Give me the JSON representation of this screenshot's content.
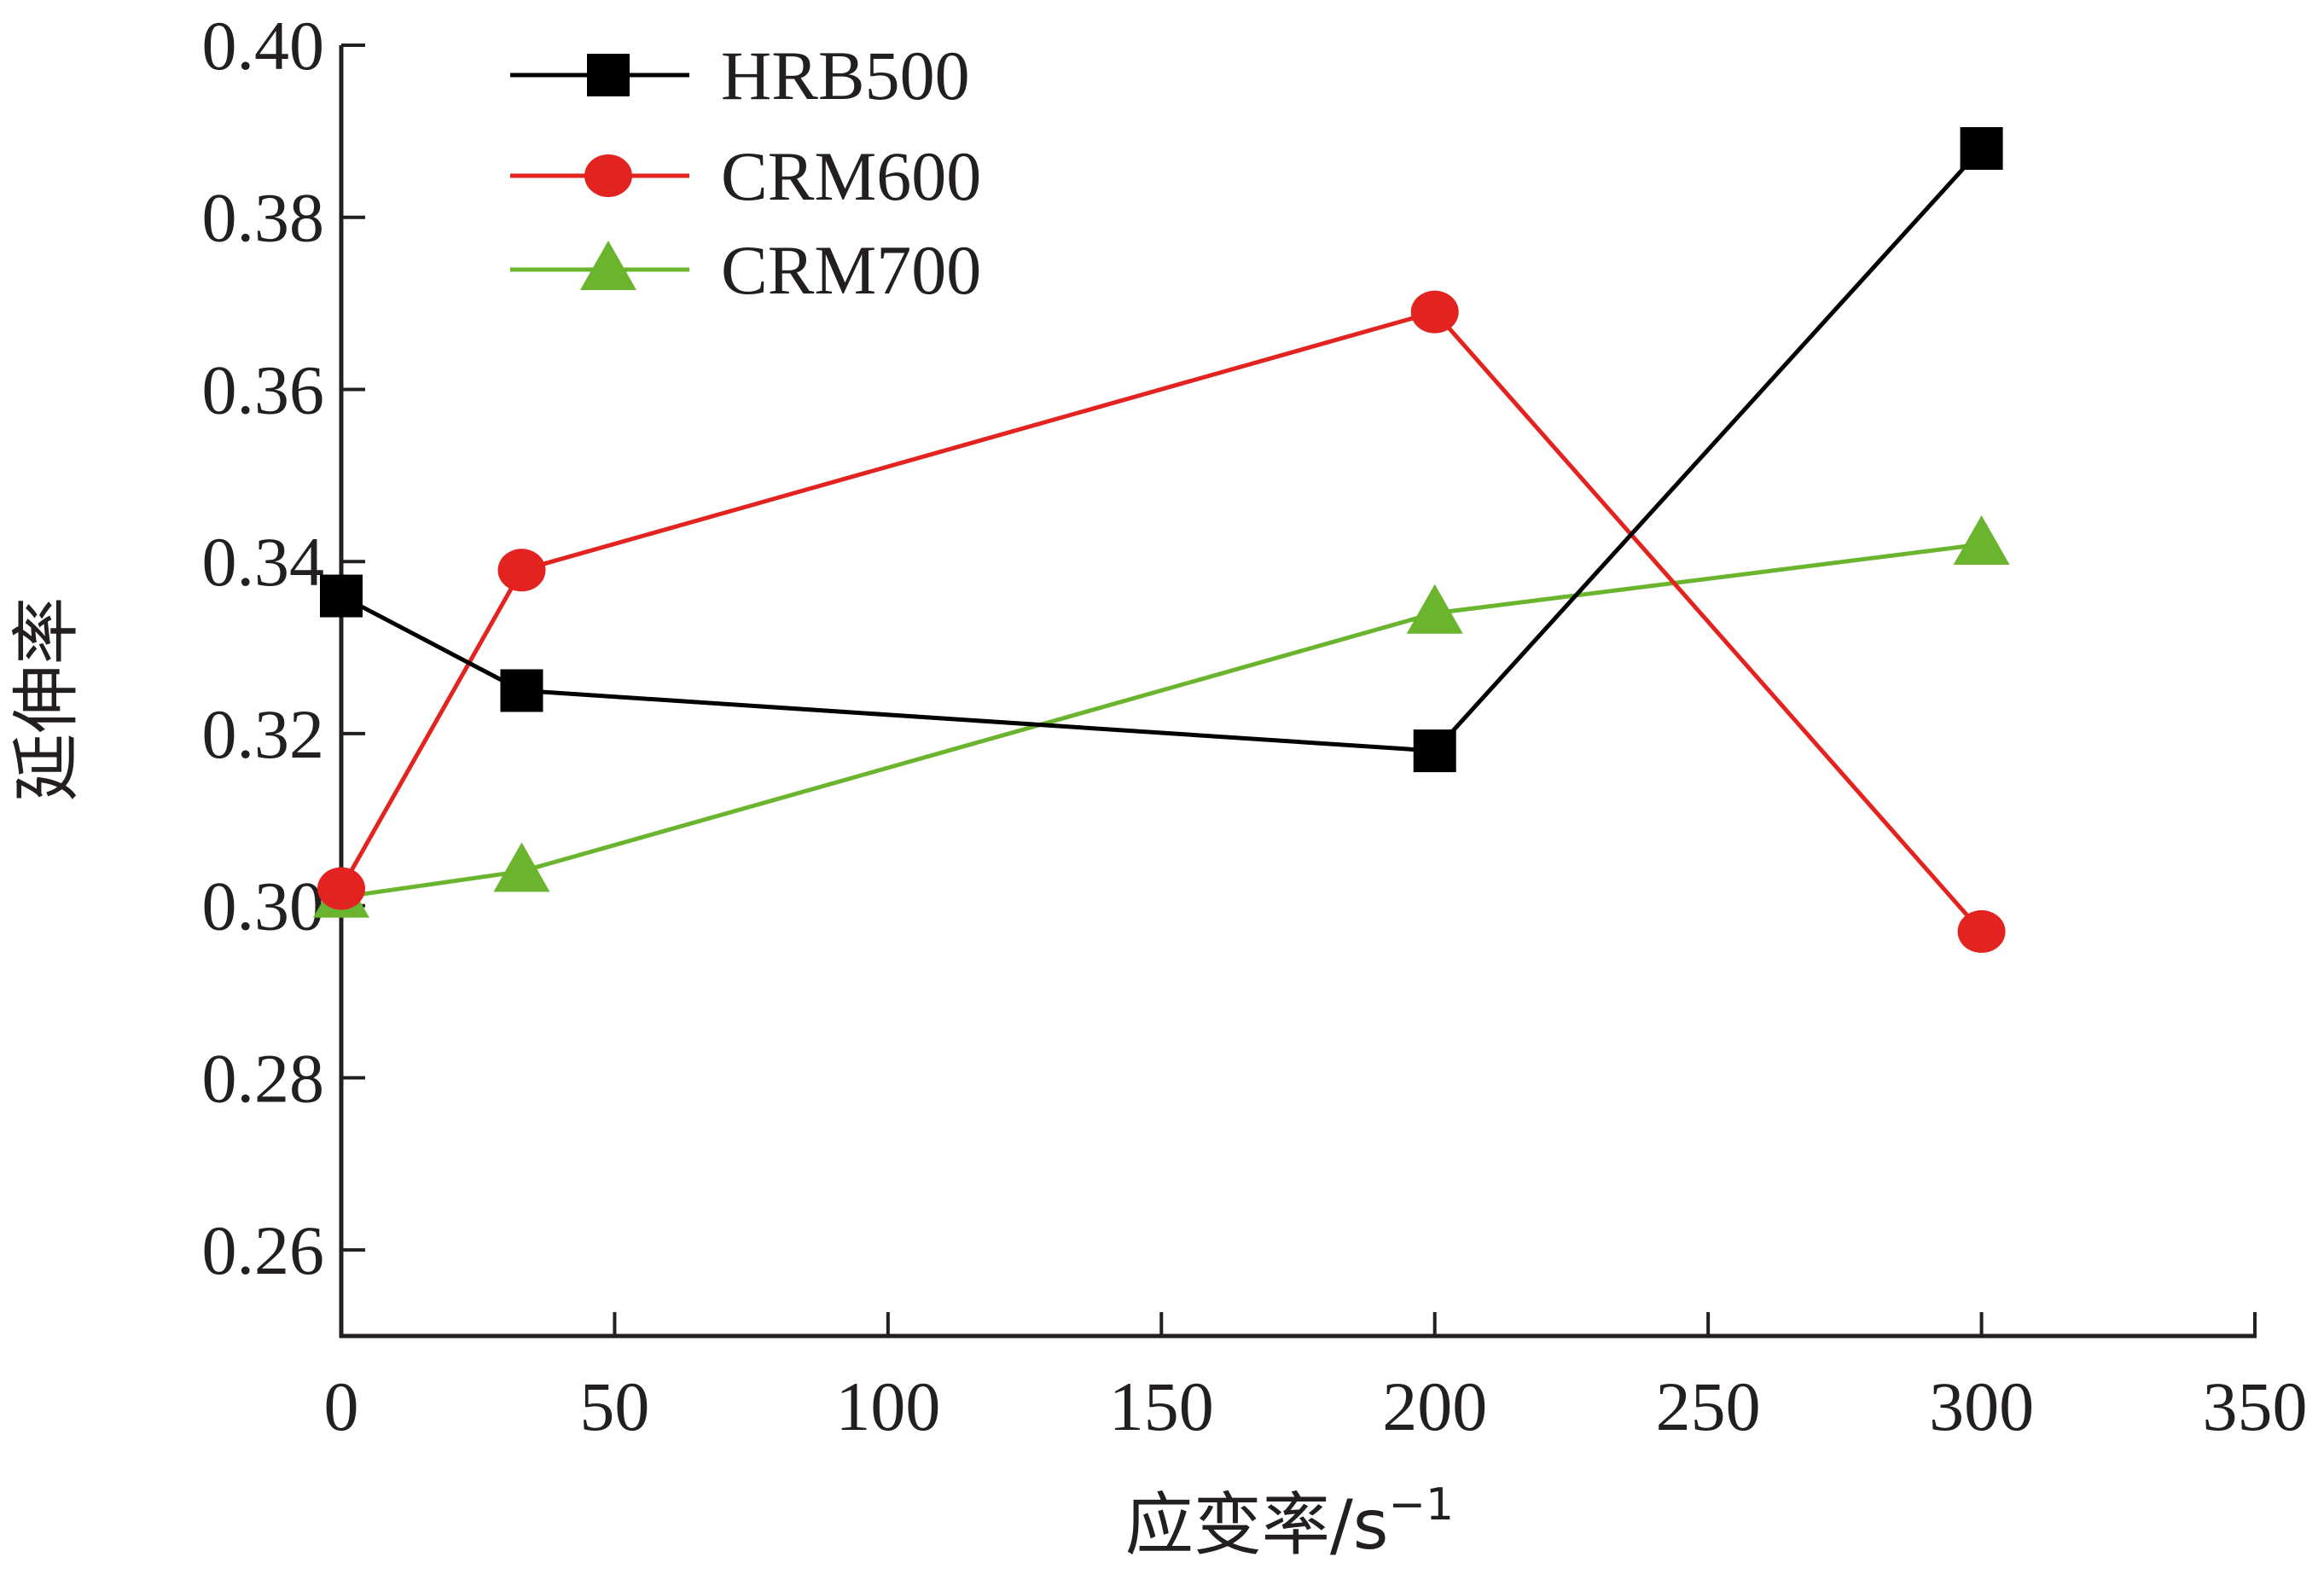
{
  "chart_data": {
    "type": "line",
    "xlabel": "应变率/s",
    "xlabel_superscript": "−1",
    "ylabel": "延伸率",
    "xlim": [
      0,
      350
    ],
    "ylim": [
      0.25,
      0.4
    ],
    "x_ticks": [
      0,
      50,
      100,
      150,
      200,
      250,
      300,
      350
    ],
    "x_tick_labels": [
      "0",
      "50",
      "100",
      "150",
      "200",
      "250",
      "300",
      "350"
    ],
    "y_ticks": [
      0.26,
      0.28,
      0.3,
      0.32,
      0.34,
      0.36,
      0.38,
      0.4
    ],
    "y_tick_labels": [
      "0.26",
      "0.28",
      "0.30",
      "0.32",
      "0.34",
      "0.36",
      "0.38",
      "0.40"
    ],
    "grid": false,
    "legend_position": "top-left",
    "series": [
      {
        "name": "HRB500",
        "color": "#000000",
        "marker": "square",
        "points": [
          [
            0,
            0.336
          ],
          [
            33,
            0.325
          ],
          [
            200,
            0.318
          ],
          [
            300,
            0.388
          ]
        ]
      },
      {
        "name": "CRM600",
        "color": "#e3231f",
        "marker": "circle",
        "points": [
          [
            0,
            0.302
          ],
          [
            33,
            0.339
          ],
          [
            200,
            0.369
          ],
          [
            300,
            0.297
          ]
        ]
      },
      {
        "name": "CRM700",
        "color": "#6ab42e",
        "marker": "triangle",
        "points": [
          [
            0,
            0.301
          ],
          [
            33,
            0.304
          ],
          [
            200,
            0.334
          ],
          [
            300,
            0.342
          ]
        ]
      }
    ]
  }
}
